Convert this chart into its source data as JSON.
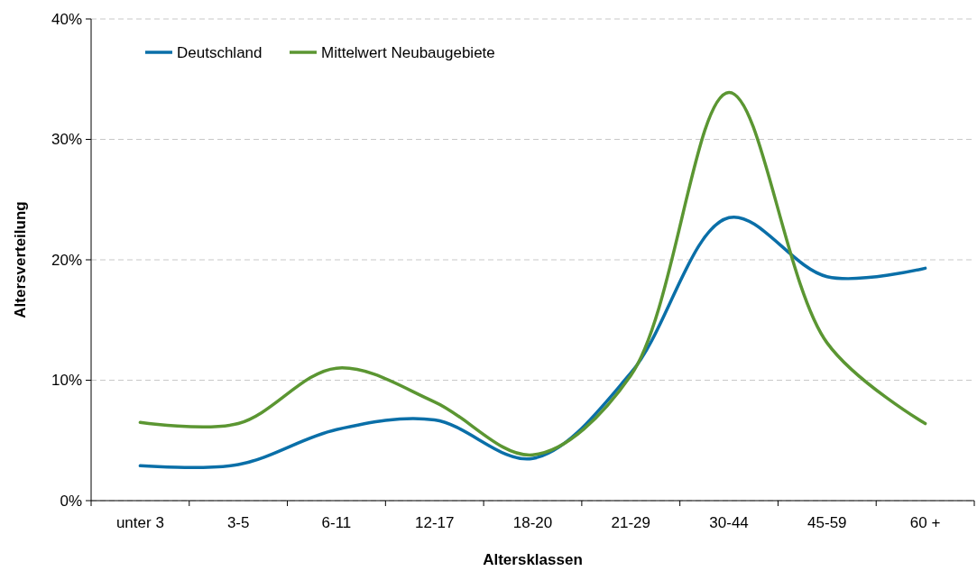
{
  "chart_data": {
    "type": "line",
    "xlabel": "Altersklassen",
    "ylabel": "Altersverteilung",
    "categories": [
      "unter 3",
      "3-5",
      "6-11",
      "12-17",
      "18-20",
      "21-29",
      "30-44",
      "45-59",
      "60 +"
    ],
    "series": [
      {
        "name": "Deutschland",
        "color": "#0a6fa8",
        "values": [
          2.9,
          3.0,
          5.9,
          6.7,
          3.5,
          10.6,
          23.5,
          18.6,
          19.3
        ]
      },
      {
        "name": "Mittelwert Neubaugebiete",
        "color": "#5b9632",
        "values": [
          6.5,
          6.4,
          11.0,
          8.2,
          3.8,
          10.4,
          33.9,
          13.1,
          6.4
        ]
      }
    ],
    "ylim": [
      0,
      40
    ],
    "yticks": [
      {
        "value": 0,
        "label": "0%"
      },
      {
        "value": 10,
        "label": "10%"
      },
      {
        "value": 20,
        "label": "20%"
      },
      {
        "value": 30,
        "label": "30%"
      },
      {
        "value": 40,
        "label": "40%"
      }
    ],
    "grid": "y",
    "legend": "top left",
    "marker": "none",
    "line_style": "solid"
  }
}
